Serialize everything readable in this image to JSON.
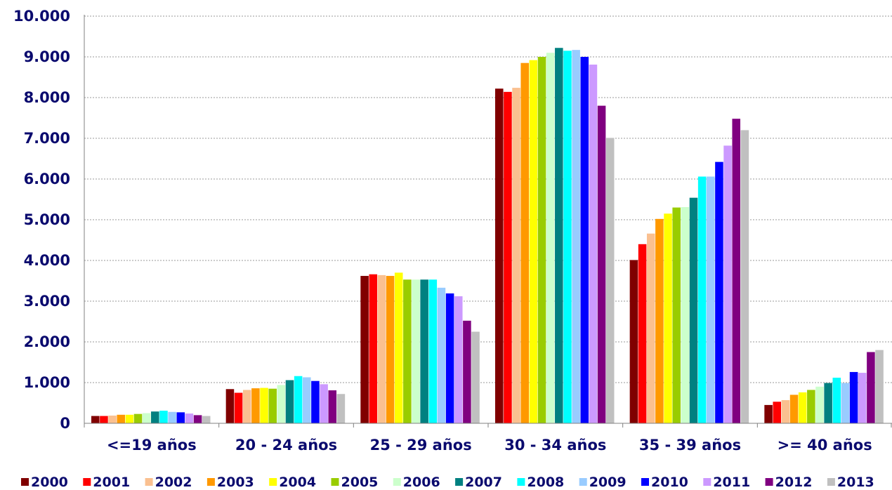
{
  "chart_data": {
    "type": "bar",
    "title": "",
    "xlabel": "",
    "ylabel": "",
    "ylim": [
      0,
      10000
    ],
    "yticks": [
      0,
      1000,
      2000,
      3000,
      4000,
      5000,
      6000,
      7000,
      8000,
      9000,
      10000
    ],
    "ytick_labels": [
      "0",
      "1.000",
      "2.000",
      "3.000",
      "4.000",
      "5.000",
      "6.000",
      "7.000",
      "8.000",
      "9.000",
      "10.000"
    ],
    "grid": true,
    "legend_position": "bottom",
    "categories": [
      "<=19 años",
      "20 - 24 años",
      "25 - 29 años",
      "30 - 34 años",
      "35 - 39 años",
      ">= 40 años"
    ],
    "series": [
      {
        "name": "2000",
        "color": "#800000",
        "values": [
          180,
          840,
          3620,
          8220,
          4010,
          450
        ]
      },
      {
        "name": "2001",
        "color": "#ff0000",
        "values": [
          180,
          750,
          3660,
          8140,
          4400,
          530
        ]
      },
      {
        "name": "2002",
        "color": "#fac090",
        "values": [
          190,
          820,
          3640,
          8240,
          4660,
          570
        ]
      },
      {
        "name": "2003",
        "color": "#ff9900",
        "values": [
          210,
          860,
          3620,
          8850,
          5020,
          700
        ]
      },
      {
        "name": "2004",
        "color": "#ffff00",
        "values": [
          210,
          870,
          3700,
          8920,
          5150,
          760
        ]
      },
      {
        "name": "2005",
        "color": "#99cc00",
        "values": [
          230,
          850,
          3530,
          9000,
          5300,
          820
        ]
      },
      {
        "name": "2006",
        "color": "#ccffcc",
        "values": [
          250,
          940,
          3530,
          9100,
          5310,
          900
        ]
      },
      {
        "name": "2007",
        "color": "#008080",
        "values": [
          290,
          1060,
          3530,
          9220,
          5540,
          990
        ]
      },
      {
        "name": "2008",
        "color": "#00ffff",
        "values": [
          310,
          1160,
          3530,
          9150,
          6060,
          1120
        ]
      },
      {
        "name": "2009",
        "color": "#99ccff",
        "values": [
          280,
          1130,
          3330,
          9170,
          6060,
          990
        ]
      },
      {
        "name": "2010",
        "color": "#0000ff",
        "values": [
          270,
          1040,
          3190,
          9000,
          6420,
          1260
        ]
      },
      {
        "name": "2011",
        "color": "#cc99ff",
        "values": [
          240,
          960,
          3120,
          8810,
          6820,
          1240
        ]
      },
      {
        "name": "2012",
        "color": "#800080",
        "values": [
          200,
          810,
          2520,
          7800,
          7480,
          1750
        ]
      },
      {
        "name": "2013",
        "color": "#c0c0c0",
        "values": [
          180,
          720,
          2250,
          7010,
          7200,
          1800
        ]
      }
    ]
  }
}
